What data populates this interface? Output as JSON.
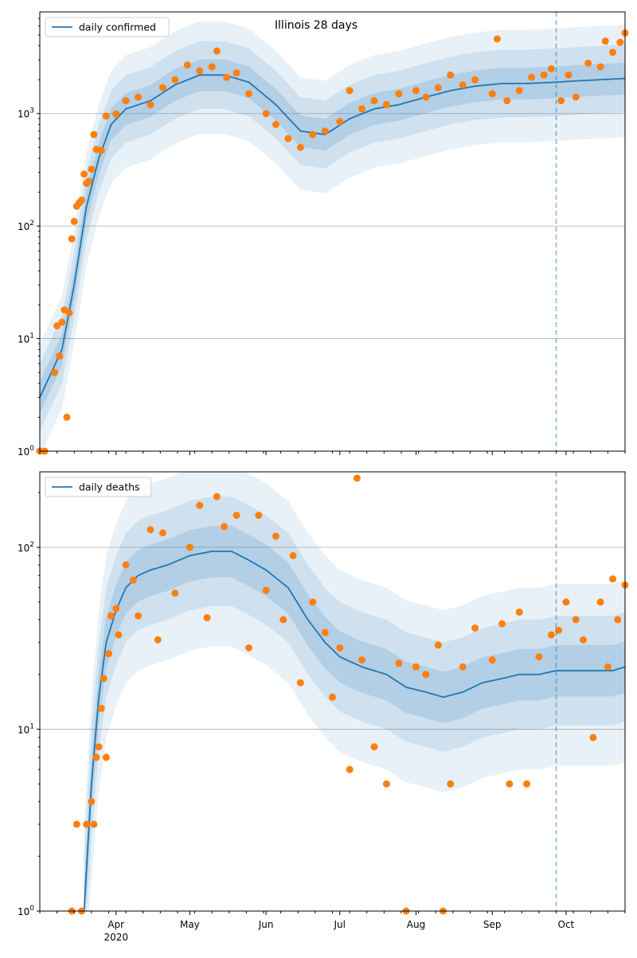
{
  "figure": {
    "title": "Illinois 28 days"
  },
  "chart_data": [
    {
      "type": "scatter",
      "title": "Illinois 28 days",
      "yscale": "log",
      "ylim": [
        1,
        8000
      ],
      "yticks": [
        {
          "value": 1,
          "base": "10",
          "exp": "0"
        },
        {
          "value": 10,
          "base": "10",
          "exp": "1"
        },
        {
          "value": 100,
          "base": "10",
          "exp": "2"
        },
        {
          "value": 1000,
          "base": "10",
          "exp": "3"
        }
      ],
      "grid": true,
      "legend": {
        "label": "daily confirmed",
        "placement": "top-left"
      },
      "x_axis": {
        "start_date": "2020-03-01",
        "end_date": "2020-10-25",
        "ticks": [
          {
            "date": "2020-04-01",
            "label": "Apr",
            "sub": "2020"
          },
          {
            "date": "2020-05-01",
            "label": "May",
            "sub": ""
          },
          {
            "date": "2020-06-01",
            "label": "Jun",
            "sub": ""
          },
          {
            "date": "2020-07-01",
            "label": "Jul",
            "sub": ""
          },
          {
            "date": "2020-08-01",
            "label": "Aug",
            "sub": ""
          },
          {
            "date": "2020-09-01",
            "label": "Sep",
            "sub": ""
          },
          {
            "date": "2020-10-01",
            "label": "Oct",
            "sub": ""
          }
        ]
      },
      "forecast_start": "2020-09-27",
      "series": [
        {
          "name": "daily confirmed",
          "kind": "model-median",
          "color": "#1f77b4",
          "dates": [
            "2020-03-01",
            "2020-03-10",
            "2020-03-15",
            "2020-03-20",
            "2020-03-25",
            "2020-03-30",
            "2020-04-05",
            "2020-04-15",
            "2020-04-25",
            "2020-05-05",
            "2020-05-15",
            "2020-05-25",
            "2020-06-05",
            "2020-06-15",
            "2020-06-25",
            "2020-07-05",
            "2020-07-15",
            "2020-07-25",
            "2020-08-05",
            "2020-08-15",
            "2020-08-25",
            "2020-09-05",
            "2020-09-15",
            "2020-09-27",
            "2020-10-05",
            "2020-10-15",
            "2020-10-25"
          ],
          "values": [
            3,
            8,
            30,
            150,
            400,
            800,
            1100,
            1300,
            1800,
            2200,
            2200,
            1900,
            1200,
            700,
            650,
            900,
            1100,
            1200,
            1400,
            1600,
            1750,
            1850,
            1850,
            1900,
            1950,
            2000,
            2050
          ]
        },
        {
          "name": "",
          "kind": "observed",
          "color": "#ff7f0e",
          "points": [
            {
              "date": "2020-03-01",
              "value": 1
            },
            {
              "date": "2020-03-03",
              "value": 1
            },
            {
              "date": "2020-03-07",
              "value": 5
            },
            {
              "date": "2020-03-08",
              "value": 13
            },
            {
              "date": "2020-03-09",
              "value": 7
            },
            {
              "date": "2020-03-10",
              "value": 14
            },
            {
              "date": "2020-03-11",
              "value": 18
            },
            {
              "date": "2020-03-12",
              "value": 2
            },
            {
              "date": "2020-03-13",
              "value": 17
            },
            {
              "date": "2020-03-14",
              "value": 77
            },
            {
              "date": "2020-03-15",
              "value": 110
            },
            {
              "date": "2020-03-16",
              "value": 150
            },
            {
              "date": "2020-03-17",
              "value": 160
            },
            {
              "date": "2020-03-18",
              "value": 170
            },
            {
              "date": "2020-03-19",
              "value": 290
            },
            {
              "date": "2020-03-20",
              "value": 240
            },
            {
              "date": "2020-03-21",
              "value": 250
            },
            {
              "date": "2020-03-22",
              "value": 320
            },
            {
              "date": "2020-03-23",
              "value": 650
            },
            {
              "date": "2020-03-24",
              "value": 480
            },
            {
              "date": "2020-03-26",
              "value": 470
            },
            {
              "date": "2020-03-28",
              "value": 950
            },
            {
              "date": "2020-04-01",
              "value": 990
            },
            {
              "date": "2020-04-05",
              "value": 1300
            },
            {
              "date": "2020-04-10",
              "value": 1400
            },
            {
              "date": "2020-04-15",
              "value": 1200
            },
            {
              "date": "2020-04-20",
              "value": 1700
            },
            {
              "date": "2020-04-25",
              "value": 2000
            },
            {
              "date": "2020-04-30",
              "value": 2700
            },
            {
              "date": "2020-05-05",
              "value": 2400
            },
            {
              "date": "2020-05-10",
              "value": 2600
            },
            {
              "date": "2020-05-12",
              "value": 3600
            },
            {
              "date": "2020-05-16",
              "value": 2100
            },
            {
              "date": "2020-05-20",
              "value": 2300
            },
            {
              "date": "2020-05-25",
              "value": 1500
            },
            {
              "date": "2020-06-01",
              "value": 1000
            },
            {
              "date": "2020-06-05",
              "value": 800
            },
            {
              "date": "2020-06-10",
              "value": 600
            },
            {
              "date": "2020-06-15",
              "value": 500
            },
            {
              "date": "2020-06-20",
              "value": 650
            },
            {
              "date": "2020-06-25",
              "value": 700
            },
            {
              "date": "2020-07-01",
              "value": 850
            },
            {
              "date": "2020-07-05",
              "value": 1600
            },
            {
              "date": "2020-07-10",
              "value": 1100
            },
            {
              "date": "2020-07-15",
              "value": 1300
            },
            {
              "date": "2020-07-20",
              "value": 1200
            },
            {
              "date": "2020-07-25",
              "value": 1500
            },
            {
              "date": "2020-08-01",
              "value": 1600
            },
            {
              "date": "2020-08-05",
              "value": 1400
            },
            {
              "date": "2020-08-10",
              "value": 1700
            },
            {
              "date": "2020-08-15",
              "value": 2200
            },
            {
              "date": "2020-08-20",
              "value": 1800
            },
            {
              "date": "2020-08-25",
              "value": 2000
            },
            {
              "date": "2020-09-01",
              "value": 1500
            },
            {
              "date": "2020-09-03",
              "value": 4600
            },
            {
              "date": "2020-09-07",
              "value": 1300
            },
            {
              "date": "2020-09-12",
              "value": 1600
            },
            {
              "date": "2020-09-17",
              "value": 2100
            },
            {
              "date": "2020-09-22",
              "value": 2200
            },
            {
              "date": "2020-09-25",
              "value": 2500
            },
            {
              "date": "2020-09-29",
              "value": 1300
            },
            {
              "date": "2020-10-02",
              "value": 2200
            },
            {
              "date": "2020-10-05",
              "value": 1400
            },
            {
              "date": "2020-10-10",
              "value": 2800
            },
            {
              "date": "2020-10-15",
              "value": 2600
            },
            {
              "date": "2020-10-17",
              "value": 4400
            },
            {
              "date": "2020-10-20",
              "value": 3500
            },
            {
              "date": "2020-10-23",
              "value": 4300
            },
            {
              "date": "2020-10-25",
              "value": 5200
            }
          ]
        }
      ]
    },
    {
      "type": "scatter",
      "title": "",
      "yscale": "log",
      "ylim": [
        1,
        260
      ],
      "yticks": [
        {
          "value": 1,
          "base": "10",
          "exp": "0"
        },
        {
          "value": 10,
          "base": "10",
          "exp": "1"
        },
        {
          "value": 100,
          "base": "10",
          "exp": "2"
        }
      ],
      "grid": true,
      "legend": {
        "label": "daily deaths",
        "placement": "top-left"
      },
      "x_axis": {
        "start_date": "2020-03-01",
        "end_date": "2020-10-25",
        "ticks": [
          {
            "date": "2020-04-01",
            "label": "Apr",
            "sub": "2020"
          },
          {
            "date": "2020-05-01",
            "label": "May",
            "sub": ""
          },
          {
            "date": "2020-06-01",
            "label": "Jun",
            "sub": ""
          },
          {
            "date": "2020-07-01",
            "label": "Jul",
            "sub": ""
          },
          {
            "date": "2020-08-01",
            "label": "Aug",
            "sub": ""
          },
          {
            "date": "2020-09-01",
            "label": "Sep",
            "sub": ""
          },
          {
            "date": "2020-10-01",
            "label": "Oct",
            "sub": ""
          }
        ]
      },
      "forecast_start": "2020-09-27",
      "series": [
        {
          "name": "daily deaths",
          "kind": "model-median",
          "color": "#1f77b4",
          "dates": [
            "2020-03-19",
            "2020-03-22",
            "2020-03-25",
            "2020-03-28",
            "2020-04-01",
            "2020-04-05",
            "2020-04-10",
            "2020-04-15",
            "2020-04-22",
            "2020-05-01",
            "2020-05-10",
            "2020-05-18",
            "2020-05-25",
            "2020-06-01",
            "2020-06-10",
            "2020-06-18",
            "2020-06-25",
            "2020-07-01",
            "2020-07-10",
            "2020-07-20",
            "2020-07-28",
            "2020-08-05",
            "2020-08-12",
            "2020-08-20",
            "2020-08-28",
            "2020-09-05",
            "2020-09-12",
            "2020-09-20",
            "2020-09-27",
            "2020-10-05",
            "2020-10-12",
            "2020-10-20",
            "2020-10-25"
          ],
          "values": [
            1,
            5,
            15,
            30,
            45,
            60,
            70,
            75,
            80,
            90,
            95,
            95,
            85,
            75,
            60,
            40,
            30,
            25,
            22,
            20,
            17,
            16,
            15,
            16,
            18,
            19,
            20,
            20,
            21,
            21,
            21,
            21,
            22
          ]
        },
        {
          "name": "",
          "kind": "observed",
          "color": "#ff7f0e",
          "points": [
            {
              "date": "2020-03-14",
              "value": 1
            },
            {
              "date": "2020-03-16",
              "value": 3
            },
            {
              "date": "2020-03-18",
              "value": 1
            },
            {
              "date": "2020-03-20",
              "value": 3
            },
            {
              "date": "2020-03-22",
              "value": 4
            },
            {
              "date": "2020-03-23",
              "value": 3
            },
            {
              "date": "2020-03-24",
              "value": 7
            },
            {
              "date": "2020-03-25",
              "value": 8
            },
            {
              "date": "2020-03-26",
              "value": 13
            },
            {
              "date": "2020-03-27",
              "value": 19
            },
            {
              "date": "2020-03-28",
              "value": 7
            },
            {
              "date": "2020-03-29",
              "value": 26
            },
            {
              "date": "2020-03-30",
              "value": 42
            },
            {
              "date": "2020-04-01",
              "value": 46
            },
            {
              "date": "2020-04-02",
              "value": 33
            },
            {
              "date": "2020-04-05",
              "value": 80
            },
            {
              "date": "2020-04-08",
              "value": 66
            },
            {
              "date": "2020-04-10",
              "value": 42
            },
            {
              "date": "2020-04-15",
              "value": 125
            },
            {
              "date": "2020-04-18",
              "value": 31
            },
            {
              "date": "2020-04-20",
              "value": 120
            },
            {
              "date": "2020-04-25",
              "value": 56
            },
            {
              "date": "2020-05-01",
              "value": 100
            },
            {
              "date": "2020-05-05",
              "value": 170
            },
            {
              "date": "2020-05-08",
              "value": 41
            },
            {
              "date": "2020-05-12",
              "value": 190
            },
            {
              "date": "2020-05-15",
              "value": 130
            },
            {
              "date": "2020-05-20",
              "value": 150
            },
            {
              "date": "2020-05-25",
              "value": 28
            },
            {
              "date": "2020-05-29",
              "value": 150
            },
            {
              "date": "2020-06-01",
              "value": 58
            },
            {
              "date": "2020-06-05",
              "value": 115
            },
            {
              "date": "2020-06-08",
              "value": 40
            },
            {
              "date": "2020-06-12",
              "value": 90
            },
            {
              "date": "2020-06-15",
              "value": 18
            },
            {
              "date": "2020-06-20",
              "value": 50
            },
            {
              "date": "2020-06-25",
              "value": 34
            },
            {
              "date": "2020-06-28",
              "value": 15
            },
            {
              "date": "2020-07-01",
              "value": 28
            },
            {
              "date": "2020-07-05",
              "value": 6
            },
            {
              "date": "2020-07-08",
              "value": 240
            },
            {
              "date": "2020-07-10",
              "value": 24
            },
            {
              "date": "2020-07-15",
              "value": 8
            },
            {
              "date": "2020-07-20",
              "value": 5
            },
            {
              "date": "2020-07-25",
              "value": 23
            },
            {
              "date": "2020-07-28",
              "value": 1
            },
            {
              "date": "2020-08-01",
              "value": 22
            },
            {
              "date": "2020-08-05",
              "value": 20
            },
            {
              "date": "2020-08-10",
              "value": 29
            },
            {
              "date": "2020-08-12",
              "value": 1
            },
            {
              "date": "2020-08-15",
              "value": 5
            },
            {
              "date": "2020-08-20",
              "value": 22
            },
            {
              "date": "2020-08-25",
              "value": 36
            },
            {
              "date": "2020-09-01",
              "value": 24
            },
            {
              "date": "2020-09-05",
              "value": 38
            },
            {
              "date": "2020-09-08",
              "value": 5
            },
            {
              "date": "2020-09-12",
              "value": 44
            },
            {
              "date": "2020-09-15",
              "value": 5
            },
            {
              "date": "2020-09-20",
              "value": 25
            },
            {
              "date": "2020-09-25",
              "value": 33
            },
            {
              "date": "2020-09-28",
              "value": 35
            },
            {
              "date": "2020-10-01",
              "value": 50
            },
            {
              "date": "2020-10-05",
              "value": 40
            },
            {
              "date": "2020-10-08",
              "value": 31
            },
            {
              "date": "2020-10-12",
              "value": 9
            },
            {
              "date": "2020-10-15",
              "value": 50
            },
            {
              "date": "2020-10-18",
              "value": 22
            },
            {
              "date": "2020-10-20",
              "value": 67
            },
            {
              "date": "2020-10-22",
              "value": 40
            },
            {
              "date": "2020-10-25",
              "value": 62
            }
          ]
        }
      ]
    }
  ]
}
